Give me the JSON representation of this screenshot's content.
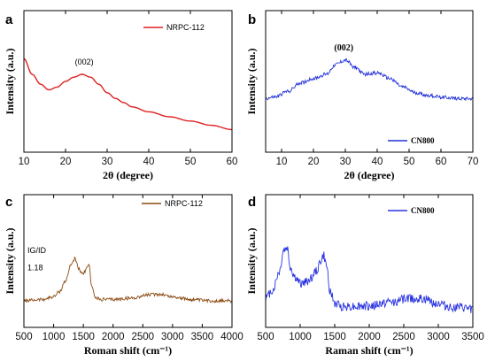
{
  "chart_data": [
    {
      "panel": "a",
      "type": "line",
      "xlabel": "2θ (degree)",
      "ylabel": "Intensity (a.u.)",
      "xlim": [
        10,
        60
      ],
      "xticks": [
        10,
        20,
        30,
        40,
        50,
        60
      ],
      "ylim": [
        0,
        1
      ],
      "legend": {
        "position": "top-right",
        "entries": [
          "NRPC-112"
        ]
      },
      "annotations": [
        {
          "text": "(002)",
          "x": 24.5,
          "y": 0.62
        }
      ],
      "series": [
        {
          "name": "NRPC-112",
          "color": "#e02020",
          "style": "smooth",
          "x": [
            10,
            12,
            14,
            16,
            18,
            20,
            22,
            24,
            26,
            28,
            30,
            32,
            34,
            36,
            40,
            45,
            50,
            55,
            60
          ],
          "y": [
            0.66,
            0.55,
            0.48,
            0.44,
            0.46,
            0.5,
            0.53,
            0.55,
            0.53,
            0.48,
            0.42,
            0.38,
            0.35,
            0.32,
            0.285,
            0.25,
            0.22,
            0.19,
            0.16
          ]
        }
      ]
    },
    {
      "panel": "b",
      "type": "line",
      "xlabel": "2θ (degree)",
      "ylabel": "Intensity (a.u.)",
      "xlim": [
        5,
        70
      ],
      "xticks": [
        10,
        20,
        30,
        40,
        50,
        60,
        70
      ],
      "ylim": [
        0,
        1
      ],
      "legend": {
        "position": "bottom-right",
        "entries": [
          "CN800"
        ]
      },
      "annotations": [
        {
          "text": "(002)",
          "x": 29.5,
          "y": 0.72
        }
      ],
      "series": [
        {
          "name": "CN800",
          "color": "#2030d8",
          "style": "noisy",
          "x": [
            5,
            8,
            12,
            16,
            20,
            24,
            27,
            30,
            33,
            36,
            40,
            44,
            48,
            52,
            56,
            60,
            65,
            70
          ],
          "y": [
            0.38,
            0.39,
            0.43,
            0.49,
            0.52,
            0.55,
            0.62,
            0.65,
            0.6,
            0.55,
            0.56,
            0.52,
            0.46,
            0.42,
            0.4,
            0.39,
            0.38,
            0.38
          ]
        }
      ]
    },
    {
      "panel": "c",
      "type": "line",
      "xlabel": "Roman shift (cm⁻¹)",
      "ylabel": "Intensity (a.u.)",
      "xlim": [
        500,
        4000
      ],
      "xticks": [
        500,
        1000,
        1500,
        2000,
        2500,
        3000,
        3500,
        4000
      ],
      "ylim": [
        0,
        1
      ],
      "legend": {
        "position": "top-right",
        "entries": [
          "NRPC-112"
        ]
      },
      "annotations": [
        {
          "text": "IG/ID",
          "x": 560,
          "y": 0.56
        },
        {
          "text": "1.18",
          "x": 560,
          "y": 0.43
        }
      ],
      "series": [
        {
          "name": "NRPC-112",
          "color": "#8a4a10",
          "style": "noisy",
          "x": [
            500,
            800,
            1000,
            1100,
            1200,
            1300,
            1360,
            1420,
            1480,
            1540,
            1590,
            1640,
            1700,
            1800,
            2000,
            2300,
            2600,
            2800,
            3000,
            3300,
            3600,
            4000
          ],
          "y": [
            0.2,
            0.21,
            0.23,
            0.27,
            0.35,
            0.48,
            0.52,
            0.44,
            0.4,
            0.43,
            0.48,
            0.32,
            0.22,
            0.21,
            0.21,
            0.22,
            0.245,
            0.25,
            0.23,
            0.21,
            0.2,
            0.2
          ]
        }
      ]
    },
    {
      "panel": "d",
      "type": "line",
      "xlabel": "Raman shift (cm⁻¹)",
      "ylabel": "Intensity (a.u.)",
      "xlim": [
        500,
        3500
      ],
      "xticks": [
        500,
        1000,
        1500,
        2000,
        2500,
        3000,
        3500
      ],
      "ylim": [
        0,
        1
      ],
      "legend": {
        "position": "top-right",
        "entries": [
          "CN800"
        ]
      },
      "series": [
        {
          "name": "CN800",
          "color": "#2a34e0",
          "style": "noisy",
          "x": [
            500,
            600,
            700,
            760,
            810,
            860,
            920,
            1000,
            1080,
            1150,
            1230,
            1300,
            1340,
            1380,
            1440,
            1500,
            1600,
            1800,
            2000,
            2300,
            2600,
            2800,
            3000,
            3200,
            3500
          ],
          "y": [
            0.22,
            0.28,
            0.42,
            0.58,
            0.6,
            0.45,
            0.38,
            0.33,
            0.34,
            0.37,
            0.42,
            0.5,
            0.54,
            0.46,
            0.26,
            0.18,
            0.16,
            0.16,
            0.16,
            0.19,
            0.22,
            0.21,
            0.18,
            0.15,
            0.14
          ]
        }
      ]
    }
  ]
}
